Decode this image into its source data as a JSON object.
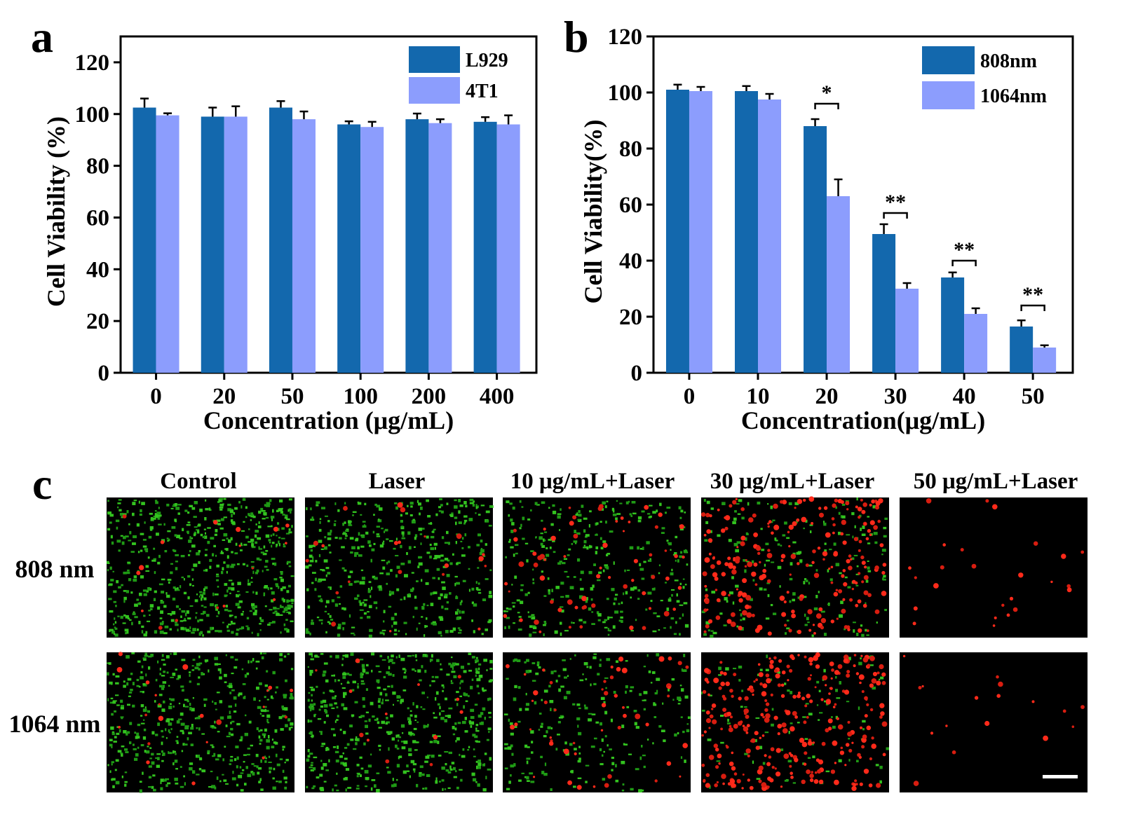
{
  "panels": {
    "a": "a",
    "b": "b",
    "c": "c"
  },
  "colors": {
    "dark": "#1368ad",
    "light": "#8c9dfd",
    "error": "#000000",
    "scale_bar": "#ffffff"
  },
  "chart_data": [
    {
      "id": "a",
      "type": "bar",
      "title": "",
      "xlabel": "Concentration (μg/mL)",
      "ylabel": "Cell Viability (%)",
      "ylim": [
        0,
        130
      ],
      "yticks": [
        0,
        20,
        40,
        60,
        80,
        100,
        120
      ],
      "categories": [
        "0",
        "20",
        "50",
        "100",
        "200",
        "400"
      ],
      "legend_position": "top-right",
      "series": [
        {
          "name": "L929",
          "color": "#1368ad",
          "values": [
            102.5,
            99,
            102.5,
            96,
            98,
            97
          ],
          "errors": [
            3.5,
            3.5,
            2.5,
            1.2,
            2.2,
            1.8
          ]
        },
        {
          "name": "4T1",
          "color": "#8c9dfd",
          "values": [
            99.5,
            99,
            98,
            95,
            96.5,
            96
          ],
          "errors": [
            0.8,
            4,
            3,
            2,
            1.5,
            3.5
          ]
        }
      ],
      "significance": []
    },
    {
      "id": "b",
      "type": "bar",
      "title": "",
      "xlabel": "Concentration(μg/mL)",
      "ylabel": "Cell Viability(%)",
      "ylim": [
        0,
        120
      ],
      "yticks": [
        0,
        20,
        40,
        60,
        80,
        100,
        120
      ],
      "categories": [
        "0",
        "10",
        "20",
        "30",
        "40",
        "50"
      ],
      "legend_position": "top-right",
      "series": [
        {
          "name": "808nm",
          "color": "#1368ad",
          "values": [
            101,
            100.5,
            88,
            49.5,
            34,
            16.5
          ],
          "errors": [
            1.8,
            1.8,
            2.5,
            3.5,
            1.8,
            2.2
          ]
        },
        {
          "name": "1064nm",
          "color": "#8c9dfd",
          "values": [
            100.5,
            97.5,
            63,
            30,
            21,
            9
          ],
          "errors": [
            1.5,
            2,
            6,
            2,
            2,
            0.8
          ]
        }
      ],
      "significance": [
        {
          "category_index": 2,
          "label": "*",
          "y": 96
        },
        {
          "category_index": 3,
          "label": "**",
          "y": 57
        },
        {
          "category_index": 4,
          "label": "**",
          "y": 40
        },
        {
          "category_index": 5,
          "label": "**",
          "y": 24
        }
      ]
    }
  ],
  "microscopy": {
    "columns": [
      "Control",
      "Laser",
      "10 μg/mL+Laser",
      "30 μg/mL+Laser",
      "50 μg/mL+Laser"
    ],
    "rows": [
      "808 nm",
      "1064 nm"
    ],
    "tiles": [
      [
        {
          "green_density": 0.95,
          "red_density": 0.04
        },
        {
          "green_density": 0.7,
          "red_density": 0.05
        },
        {
          "green_density": 0.5,
          "red_density": 0.15
        },
        {
          "green_density": 0.3,
          "red_density": 0.55
        },
        {
          "green_density": 0.0,
          "red_density": 0.06
        }
      ],
      [
        {
          "green_density": 0.75,
          "red_density": 0.05
        },
        {
          "green_density": 0.8,
          "red_density": 0.03
        },
        {
          "green_density": 0.35,
          "red_density": 0.12
        },
        {
          "green_density": 0.15,
          "red_density": 0.7
        },
        {
          "green_density": 0.0,
          "red_density": 0.04
        }
      ]
    ],
    "scale_bar_visible": true
  }
}
